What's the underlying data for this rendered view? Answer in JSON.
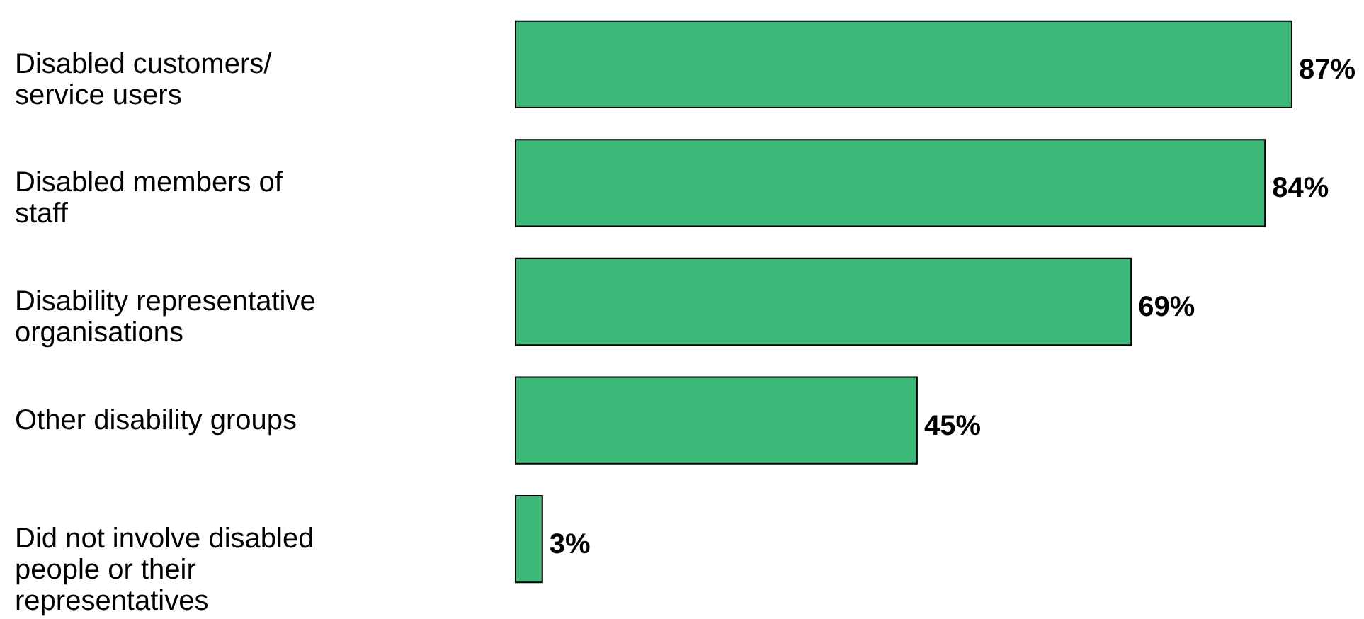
{
  "chart_data": {
    "type": "bar",
    "orientation": "horizontal",
    "categories": [
      "Disabled customers/\nservice users",
      "Disabled members of\nstaff",
      "Disability representative\norganisations",
      "Other disability groups",
      "Did not involve disabled\npeople or their\nrepresentatives"
    ],
    "values": [
      87,
      84,
      69,
      45,
      3
    ],
    "value_labels": [
      "87%",
      "84%",
      "69%",
      "45%",
      "3%"
    ],
    "color": "#3cb878"
  }
}
